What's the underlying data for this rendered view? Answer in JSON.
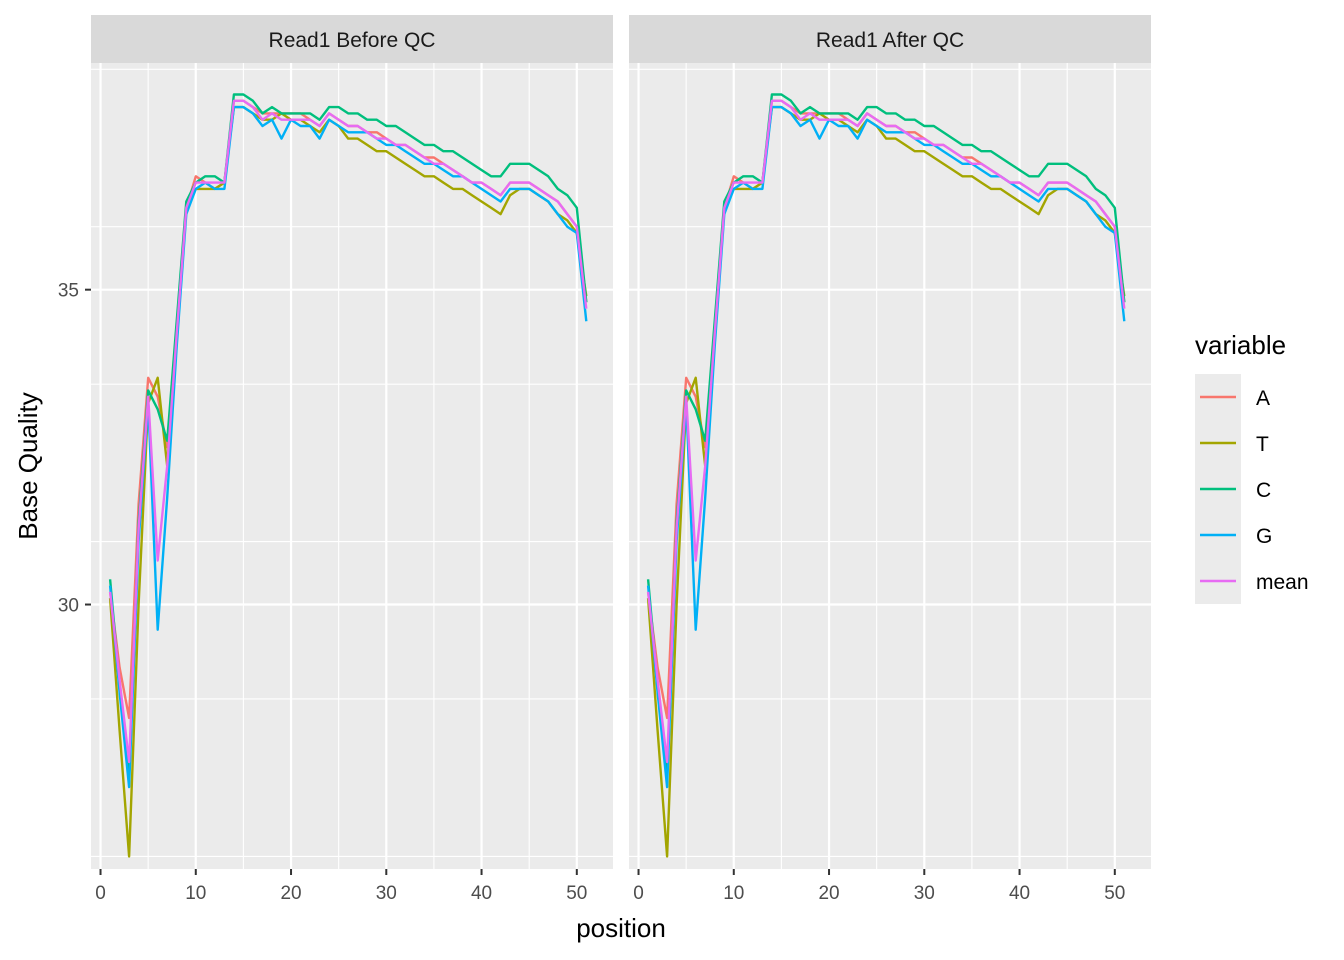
{
  "chart_data": {
    "type": "line",
    "xlabel": "position",
    "ylabel": "Base Quality",
    "xlim": [
      0,
      51
    ],
    "ylim": [
      25.8,
      38.6
    ],
    "x_ticks": [
      0,
      10,
      20,
      30,
      40,
      50
    ],
    "y_ticks": [
      30,
      35
    ],
    "legend": {
      "title": "variable",
      "position": "right",
      "items": [
        "A",
        "T",
        "C",
        "G",
        "mean"
      ]
    },
    "colors": {
      "A": "#F8766D",
      "T": "#A3A500",
      "C": "#00BF7D",
      "G": "#00B0F6",
      "mean": "#E76BF3"
    },
    "x": [
      1,
      2,
      3,
      4,
      5,
      6,
      7,
      8,
      9,
      10,
      11,
      12,
      13,
      14,
      15,
      16,
      17,
      18,
      19,
      20,
      21,
      22,
      23,
      24,
      25,
      26,
      27,
      28,
      29,
      30,
      31,
      32,
      33,
      34,
      35,
      36,
      37,
      38,
      39,
      40,
      41,
      42,
      43,
      44,
      45,
      46,
      47,
      48,
      49,
      50,
      51
    ],
    "panels": [
      {
        "title": "Read1 Before QC",
        "series": [
          {
            "name": "A",
            "values": [
              30.2,
              29.0,
              28.2,
              31.6,
              33.6,
              33.3,
              32.5,
              34.4,
              36.3,
              36.8,
              36.7,
              36.6,
              36.7,
              38.0,
              38.0,
              37.9,
              37.8,
              37.8,
              37.8,
              37.8,
              37.8,
              37.7,
              37.6,
              37.8,
              37.7,
              37.6,
              37.6,
              37.5,
              37.5,
              37.4,
              37.3,
              37.3,
              37.2,
              37.1,
              37.1,
              37.0,
              36.9,
              36.8,
              36.7,
              36.7,
              36.6,
              36.5,
              36.7,
              36.7,
              36.7,
              36.6,
              36.5,
              36.4,
              36.2,
              36.0,
              34.8
            ]
          },
          {
            "name": "T",
            "values": [
              30.1,
              28.0,
              26.0,
              30.0,
              33.2,
              33.6,
              32.2,
              34.3,
              36.3,
              36.6,
              36.6,
              36.6,
              36.7,
              37.9,
              37.9,
              37.8,
              37.7,
              37.7,
              37.8,
              37.7,
              37.7,
              37.6,
              37.5,
              37.7,
              37.6,
              37.4,
              37.4,
              37.3,
              37.2,
              37.2,
              37.1,
              37.0,
              36.9,
              36.8,
              36.8,
              36.7,
              36.6,
              36.6,
              36.5,
              36.4,
              36.3,
              36.2,
              36.5,
              36.6,
              36.6,
              36.5,
              36.4,
              36.2,
              36.1,
              35.9,
              34.9
            ]
          },
          {
            "name": "C",
            "values": [
              30.4,
              28.7,
              27.3,
              31.3,
              33.4,
              33.1,
              32.6,
              34.5,
              36.4,
              36.7,
              36.8,
              36.8,
              36.7,
              38.1,
              38.1,
              38.0,
              37.8,
              37.9,
              37.8,
              37.8,
              37.8,
              37.8,
              37.7,
              37.9,
              37.9,
              37.8,
              37.8,
              37.7,
              37.7,
              37.6,
              37.6,
              37.5,
              37.4,
              37.3,
              37.3,
              37.2,
              37.2,
              37.1,
              37.0,
              36.9,
              36.8,
              36.8,
              37.0,
              37.0,
              37.0,
              36.9,
              36.8,
              36.6,
              36.5,
              36.3,
              34.8
            ]
          },
          {
            "name": "G",
            "values": [
              30.3,
              28.6,
              27.1,
              31.0,
              33.2,
              29.6,
              31.7,
              34.1,
              36.2,
              36.6,
              36.7,
              36.6,
              36.6,
              37.9,
              37.9,
              37.8,
              37.6,
              37.7,
              37.4,
              37.7,
              37.6,
              37.6,
              37.4,
              37.7,
              37.6,
              37.5,
              37.5,
              37.5,
              37.4,
              37.3,
              37.3,
              37.2,
              37.1,
              37.0,
              37.0,
              36.9,
              36.8,
              36.8,
              36.7,
              36.6,
              36.5,
              36.4,
              36.6,
              36.6,
              36.6,
              36.5,
              36.4,
              36.2,
              36.0,
              35.9,
              34.5
            ]
          },
          {
            "name": "mean",
            "values": [
              30.2,
              28.8,
              27.5,
              31.2,
              33.3,
              30.7,
              32.2,
              34.3,
              36.3,
              36.7,
              36.7,
              36.7,
              36.7,
              38.0,
              38.0,
              37.9,
              37.7,
              37.8,
              37.7,
              37.7,
              37.7,
              37.7,
              37.6,
              37.8,
              37.7,
              37.6,
              37.6,
              37.5,
              37.4,
              37.4,
              37.3,
              37.3,
              37.2,
              37.1,
              37.0,
              37.0,
              36.9,
              36.8,
              36.7,
              36.7,
              36.6,
              36.5,
              36.7,
              36.7,
              36.7,
              36.6,
              36.5,
              36.4,
              36.2,
              36.0,
              34.7
            ]
          }
        ]
      },
      {
        "title": "Read1 After QC",
        "series": [
          {
            "name": "A",
            "values": [
              30.2,
              29.0,
              28.2,
              31.6,
              33.6,
              33.3,
              32.5,
              34.4,
              36.3,
              36.8,
              36.7,
              36.6,
              36.7,
              38.0,
              38.0,
              37.9,
              37.8,
              37.8,
              37.8,
              37.8,
              37.8,
              37.7,
              37.6,
              37.8,
              37.7,
              37.6,
              37.6,
              37.5,
              37.5,
              37.4,
              37.3,
              37.3,
              37.2,
              37.1,
              37.1,
              37.0,
              36.9,
              36.8,
              36.7,
              36.7,
              36.6,
              36.5,
              36.7,
              36.7,
              36.7,
              36.6,
              36.5,
              36.4,
              36.2,
              36.0,
              34.8
            ]
          },
          {
            "name": "T",
            "values": [
              30.1,
              28.0,
              26.0,
              30.0,
              33.2,
              33.6,
              32.2,
              34.3,
              36.3,
              36.6,
              36.6,
              36.6,
              36.7,
              37.9,
              37.9,
              37.8,
              37.7,
              37.7,
              37.8,
              37.7,
              37.7,
              37.6,
              37.5,
              37.7,
              37.6,
              37.4,
              37.4,
              37.3,
              37.2,
              37.2,
              37.1,
              37.0,
              36.9,
              36.8,
              36.8,
              36.7,
              36.6,
              36.6,
              36.5,
              36.4,
              36.3,
              36.2,
              36.5,
              36.6,
              36.6,
              36.5,
              36.4,
              36.2,
              36.1,
              35.9,
              34.9
            ]
          },
          {
            "name": "C",
            "values": [
              30.4,
              28.7,
              27.3,
              31.3,
              33.4,
              33.1,
              32.6,
              34.5,
              36.4,
              36.7,
              36.8,
              36.8,
              36.7,
              38.1,
              38.1,
              38.0,
              37.8,
              37.9,
              37.8,
              37.8,
              37.8,
              37.8,
              37.7,
              37.9,
              37.9,
              37.8,
              37.8,
              37.7,
              37.7,
              37.6,
              37.6,
              37.5,
              37.4,
              37.3,
              37.3,
              37.2,
              37.2,
              37.1,
              37.0,
              36.9,
              36.8,
              36.8,
              37.0,
              37.0,
              37.0,
              36.9,
              36.8,
              36.6,
              36.5,
              36.3,
              34.8
            ]
          },
          {
            "name": "G",
            "values": [
              30.3,
              28.6,
              27.1,
              31.0,
              33.2,
              29.6,
              31.7,
              34.1,
              36.2,
              36.6,
              36.7,
              36.6,
              36.6,
              37.9,
              37.9,
              37.8,
              37.6,
              37.7,
              37.4,
              37.7,
              37.6,
              37.6,
              37.4,
              37.7,
              37.6,
              37.5,
              37.5,
              37.5,
              37.4,
              37.3,
              37.3,
              37.2,
              37.1,
              37.0,
              37.0,
              36.9,
              36.8,
              36.8,
              36.7,
              36.6,
              36.5,
              36.4,
              36.6,
              36.6,
              36.6,
              36.5,
              36.4,
              36.2,
              36.0,
              35.9,
              34.5
            ]
          },
          {
            "name": "mean",
            "values": [
              30.2,
              28.8,
              27.5,
              31.2,
              33.3,
              30.7,
              32.2,
              34.3,
              36.3,
              36.7,
              36.7,
              36.7,
              36.7,
              38.0,
              38.0,
              37.9,
              37.7,
              37.8,
              37.7,
              37.7,
              37.7,
              37.7,
              37.6,
              37.8,
              37.7,
              37.6,
              37.6,
              37.5,
              37.4,
              37.4,
              37.3,
              37.3,
              37.2,
              37.1,
              37.0,
              37.0,
              36.9,
              36.8,
              36.7,
              36.7,
              36.6,
              36.5,
              36.7,
              36.7,
              36.7,
              36.6,
              36.5,
              36.4,
              36.2,
              36.0,
              34.7
            ]
          }
        ]
      }
    ]
  }
}
